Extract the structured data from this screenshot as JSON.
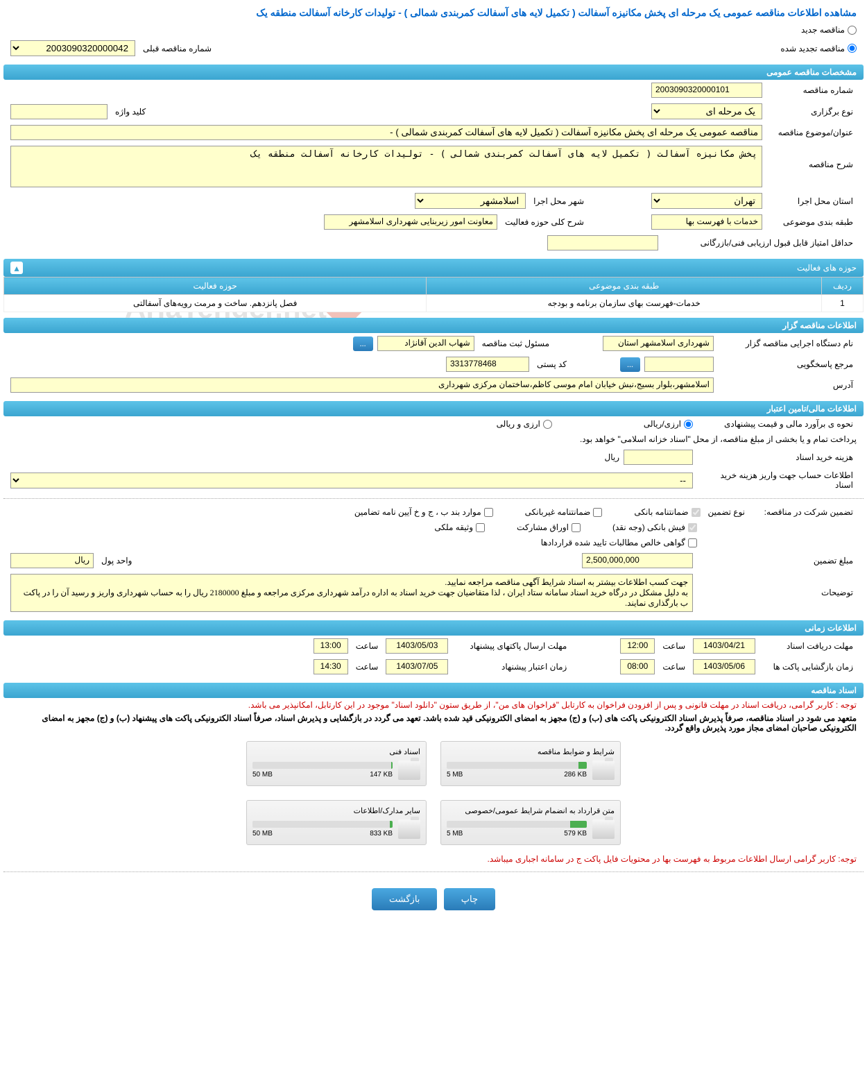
{
  "title": "مشاهده اطلاعات مناقصه عمومی یک مرحله ای پخش مکانیزه آسفالت ( تکمیل لایه های آسفالت کمربندی شمالی ) - تولیدات کارخانه آسفالت منطقه یک",
  "radio_new": "مناقصه جدید",
  "radio_renewed": "مناقصه تجدید شده",
  "prev_number_label": "شماره مناقصه قبلی",
  "prev_number_value": "2003090320000042",
  "sections": {
    "general": "مشخصات مناقصه عمومی",
    "activity": "حوزه های فعالیت",
    "executor": "اطلاعات مناقصه گزار",
    "financial": "اطلاعات مالی/تامین اعتبار",
    "time": "اطلاعات زمانی",
    "docs": "اسناد مناقصه"
  },
  "general": {
    "number_label": "شماره مناقصه",
    "number_value": "2003090320000101",
    "type_label": "نوع برگزاری",
    "type_value": "یک مرحله ای",
    "keyword_label": "کلید واژه",
    "keyword_value": "",
    "subject_label": "عنوان/موضوع مناقصه",
    "subject_value": "مناقصه عمومی یک مرحله ای پخش مکانیزه آسفالت ( تکمیل لایه های آسفالت کمربندی شمالی ) -",
    "desc_label": "شرح مناقصه",
    "desc_value": "پخش مکانیزه آسفالت ( تکمیل لایه های آسفالت کمربندی شمالی ) - تولیدات کارخانه آسفالت منطقه یک",
    "province_label": "استان محل اجرا",
    "province_value": "تهران",
    "city_label": "شهر محل اجرا",
    "city_value": "اسلامشهر",
    "classify_label": "طبقه بندی موضوعی",
    "classify_value": "خدمات با فهرست بها",
    "field_label": "شرح کلی حوزه فعالیت",
    "field_value": "معاونت امور زیربنایی شهرداری اسلامشهر",
    "min_score_label": "حداقل امتیاز قابل قبول ارزیابی فنی/بازرگانی",
    "min_score_value": ""
  },
  "activity_table": {
    "col_row": "ردیف",
    "col_class": "طبقه بندی موضوعی",
    "col_field": "حوزه فعالیت",
    "row1_num": "1",
    "row1_class": "خدمات-فهرست بهای سازمان برنامه و بودجه",
    "row1_field": "فصل پانزدهم. ساخت و مرمت رویه‌های آسفالتی"
  },
  "executor": {
    "org_label": "نام دستگاه اجرایی مناقصه گزار",
    "org_value": "شهرداری اسلامشهر استان",
    "officer_label": "مسئول ثبت مناقصه",
    "officer_value": "شهاب الدین آقانژاد",
    "more_btn": "...",
    "contact_label": "مرجع پاسخگویی",
    "contact_value": "",
    "postal_label": "کد پستی",
    "postal_value": "3313778468",
    "address_label": "آدرس",
    "address_value": "اسلامشهر،بلوار بسیج،نبش خیابان امام موسی کاظم،ساختمان مرکزی شهرداری"
  },
  "financial": {
    "estimate_label": "نحوه ی برآورد مالی و قیمت پیشنهادی",
    "currency_rial": "ارزی/ریالی",
    "currency_foreign": "ارزی و ریالی",
    "payment_note": "پرداخت تمام و یا بخشی از مبلغ مناقصه، از محل \"اسناد خزانه اسلامی\" خواهد بود.",
    "doc_cost_label": "هزینه خرید اسناد",
    "doc_cost_value": "",
    "rial_unit": "ریال",
    "account_label": "اطلاعات حساب جهت واریز هزینه خرید اسناد",
    "account_value": "--",
    "guarantee_label": "تضمین شرکت در مناقصه:",
    "guarantee_type_label": "نوع تضمین",
    "cb_bank": "ضمانتنامه بانکی",
    "cb_nonbank": "ضمانتنامه غیربانکی",
    "cb_cases": "موارد بند ب ، ج و خ آیین نامه تضامین",
    "cb_cash": "فیش بانکی (وجه نقد)",
    "cb_partnership": "اوراق مشارکت",
    "cb_property": "وثیقه ملکی",
    "cb_claims": "گواهی خالص مطالبات تایید شده قراردادها",
    "amount_label": "مبلغ تضمین",
    "amount_value": "2,500,000,000",
    "unit_label": "واحد پول",
    "unit_value": "ریال",
    "notes_label": "توضیحات",
    "notes_value": "جهت کسب اطلاعات بیشتر به اسناد شرایط آگهی مناقصه مراجعه نمایید.\nبه دلیل مشکل در درگاه خرید اسناد سامانه ستاد ایران ، لذا متقاضیان جهت خرید اسناد به اداره درآمد شهرداری مرکزی مراجعه و مبلغ 2180000 ریال را به حساب شهرداری واریز و رسید آن را در پاکت ب بارگذاری نمایند."
  },
  "time": {
    "receive_deadline_label": "مهلت دریافت اسناد",
    "receive_date": "1403/04/21",
    "receive_time_label": "ساعت",
    "receive_time": "12:00",
    "submit_deadline_label": "مهلت ارسال پاکتهای پیشنهاد",
    "submit_date": "1403/05/03",
    "submit_time": "13:00",
    "open_label": "زمان بازگشایی پاکت ها",
    "open_date": "1403/05/06",
    "open_time": "08:00",
    "validity_label": "زمان اعتبار پیشنهاد",
    "validity_date": "1403/07/05",
    "validity_time": "14:30"
  },
  "docs": {
    "note1": "توجه : کاربر گرامی، دریافت اسناد در مهلت قانونی و پس از افزودن فراخوان به کارتابل \"فراخوان های من\"، از طریق ستون \"دانلود اسناد\" موجود در این کارتابل، امکانپذیر می باشد.",
    "note2": "متعهد می شود در اسناد مناقصه، صرفاً پذیرش اسناد الکترونیکی پاکت های (ب) و (ج) مجهز به امضای الکترونیکی قید شده باشد. تعهد می گردد در بازگشایی و پذیرش اسناد، صرفاً اسناد الکترونیکی پاکت های پیشنهاد (ب) و (ج) مجهز به امضای الکترونیکی صاحبان امضای مجاز مورد پذیرش واقع گردد.",
    "box1_title": "شرایط و ضوابط مناقصه",
    "box1_used": "286 KB",
    "box1_total": "5 MB",
    "box1_fill": "6%",
    "box2_title": "اسناد فنی",
    "box2_used": "147 KB",
    "box2_total": "50 MB",
    "box2_fill": "1%",
    "box3_title": "متن قرارداد به انضمام شرایط عمومی/خصوصی",
    "box3_used": "579 KB",
    "box3_total": "5 MB",
    "box3_fill": "12%",
    "box4_title": "سایر مدارک/اطلاعات",
    "box4_used": "833 KB",
    "box4_total": "50 MB",
    "box4_fill": "2%",
    "note3": "توجه: کاربر گرامی ارسال اطلاعات مربوط به فهرست بها در محتویات فایل پاکت ج در سامانه اجباری میباشد."
  },
  "buttons": {
    "print": "چاپ",
    "back": "بازگشت"
  },
  "watermark": "AriaTender.net"
}
